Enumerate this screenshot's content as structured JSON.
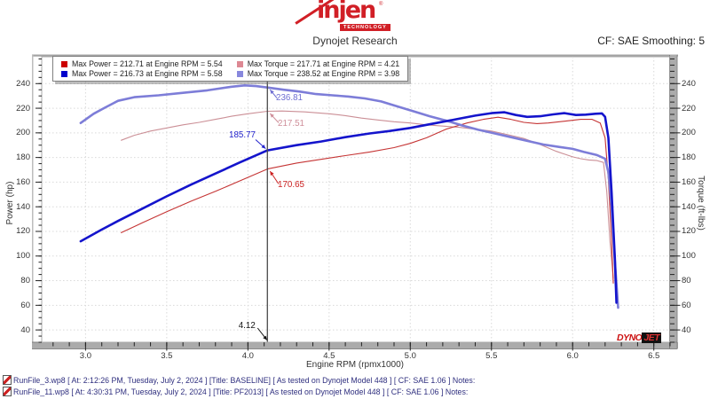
{
  "header": {
    "logo_brand": "injen",
    "logo_reg": "®",
    "logo_sub": "TECHNOLOGY",
    "title": "Dynojet Research",
    "smoothing": "CF: SAE Smoothing: 5"
  },
  "legend": {
    "items": [
      {
        "label": "Max Power = 212.71 at Engine RPM = 5.54",
        "marker_color": "#cc0000"
      },
      {
        "label": "Max Torque = 217.71 at Engine RPM = 4.21",
        "marker_color": "#dd8893"
      },
      {
        "label": "Max Power = 216.73 at Engine RPM = 5.58",
        "marker_color": "#0000cc"
      },
      {
        "label": "Max Torque = 238.52 at Engine RPM = 3.98",
        "marker_color": "#8888dd"
      }
    ]
  },
  "chart_data": {
    "type": "line",
    "x_axis": {
      "label": "Engine RPM (rpmx1000)",
      "range": [
        2.73,
        6.6
      ],
      "ticks": [
        3.0,
        3.5,
        4.0,
        4.5,
        5.0,
        5.5,
        6.0,
        6.5
      ],
      "minor_step": 0.1
    },
    "y_left": {
      "label": "Power (hp)",
      "range": [
        30,
        261.8
      ],
      "ticks": [
        40,
        60,
        80,
        100,
        120,
        140,
        160,
        180,
        200,
        220,
        240
      ],
      "minor_step": 5
    },
    "y_right": {
      "label": "Torque (ft-lbs)",
      "range": [
        30,
        261.8
      ],
      "ticks": [
        40,
        60,
        80,
        100,
        120,
        140,
        160,
        180,
        200,
        220,
        240
      ],
      "minor_step": 5
    },
    "grid": "dotted",
    "colors": {
      "grid": "#d9d9d9",
      "cursor": "#4a4a4a",
      "tick": "#222222"
    },
    "series": [
      {
        "name": "baseline-torque",
        "run": "BASELINE",
        "color": "#cb8f96",
        "width": 1.1,
        "points": [
          [
            3.22,
            194
          ],
          [
            3.3,
            198
          ],
          [
            3.4,
            201.5
          ],
          [
            3.5,
            204
          ],
          [
            3.6,
            206.5
          ],
          [
            3.7,
            208.5
          ],
          [
            3.8,
            211
          ],
          [
            3.9,
            213.5
          ],
          [
            4.0,
            215.5
          ],
          [
            4.12,
            217.51
          ],
          [
            4.21,
            217.71
          ],
          [
            4.35,
            217
          ],
          [
            4.5,
            215.5
          ],
          [
            4.6,
            214
          ],
          [
            4.7,
            212
          ],
          [
            4.8,
            210.5
          ],
          [
            4.9,
            209
          ],
          [
            5.0,
            208
          ],
          [
            5.1,
            206.5
          ],
          [
            5.2,
            205.5
          ],
          [
            5.3,
            204.5
          ],
          [
            5.4,
            203
          ],
          [
            5.5,
            201.5
          ],
          [
            5.6,
            198.5
          ],
          [
            5.7,
            195.5
          ],
          [
            5.8,
            190.5
          ],
          [
            5.9,
            185
          ],
          [
            6.0,
            180.5
          ],
          [
            6.05,
            179
          ],
          [
            6.1,
            178
          ],
          [
            6.15,
            177.5
          ],
          [
            6.19,
            176
          ],
          [
            6.21,
            152
          ],
          [
            6.23,
            112
          ],
          [
            6.25,
            82
          ]
        ]
      },
      {
        "name": "baseline-power",
        "run": "BASELINE",
        "color": "#c53434",
        "width": 1.1,
        "points": [
          [
            3.22,
            119
          ],
          [
            3.35,
            127
          ],
          [
            3.5,
            136
          ],
          [
            3.65,
            144.5
          ],
          [
            3.8,
            152.5
          ],
          [
            3.95,
            161
          ],
          [
            4.12,
            170.65
          ],
          [
            4.3,
            175.5
          ],
          [
            4.45,
            178.5
          ],
          [
            4.6,
            181.5
          ],
          [
            4.75,
            184.5
          ],
          [
            4.9,
            188
          ],
          [
            5.0,
            191.5
          ],
          [
            5.1,
            196
          ],
          [
            5.22,
            203
          ],
          [
            5.35,
            208
          ],
          [
            5.45,
            211
          ],
          [
            5.54,
            212.71
          ],
          [
            5.62,
            211
          ],
          [
            5.7,
            208.5
          ],
          [
            5.78,
            207.5
          ],
          [
            5.85,
            208
          ],
          [
            5.95,
            209.5
          ],
          [
            6.05,
            211
          ],
          [
            6.12,
            211
          ],
          [
            6.17,
            208
          ],
          [
            6.2,
            196
          ],
          [
            6.22,
            162
          ],
          [
            6.24,
            112
          ],
          [
            6.25,
            78
          ]
        ]
      },
      {
        "name": "pf2013-torque",
        "run": "PF2013",
        "color": "#7d7dd8",
        "width": 2.6,
        "points": [
          [
            2.97,
            208
          ],
          [
            3.05,
            215.5
          ],
          [
            3.12,
            220.5
          ],
          [
            3.2,
            226
          ],
          [
            3.3,
            229
          ],
          [
            3.45,
            230.5
          ],
          [
            3.6,
            232.5
          ],
          [
            3.75,
            234.5
          ],
          [
            3.9,
            237.5
          ],
          [
            3.98,
            238.52
          ],
          [
            4.05,
            238
          ],
          [
            4.12,
            236.81
          ],
          [
            4.22,
            235
          ],
          [
            4.32,
            233.5
          ],
          [
            4.42,
            231.5
          ],
          [
            4.52,
            230.5
          ],
          [
            4.62,
            229.5
          ],
          [
            4.72,
            228
          ],
          [
            4.82,
            225.5
          ],
          [
            4.92,
            221.5
          ],
          [
            5.02,
            217.5
          ],
          [
            5.12,
            213.5
          ],
          [
            5.22,
            210
          ],
          [
            5.32,
            206
          ],
          [
            5.42,
            202.5
          ],
          [
            5.52,
            199.5
          ],
          [
            5.62,
            196.5
          ],
          [
            5.72,
            193.5
          ],
          [
            5.82,
            190.5
          ],
          [
            5.92,
            188.5
          ],
          [
            6.0,
            187
          ],
          [
            6.07,
            184.5
          ],
          [
            6.15,
            182
          ],
          [
            6.2,
            179
          ],
          [
            6.22,
            168
          ],
          [
            6.24,
            140
          ],
          [
            6.26,
            96
          ],
          [
            6.28,
            58
          ]
        ]
      },
      {
        "name": "pf2013-power",
        "run": "PF2013",
        "color": "#1414cc",
        "width": 2.6,
        "points": [
          [
            2.97,
            112
          ],
          [
            3.1,
            121.5
          ],
          [
            3.2,
            128.5
          ],
          [
            3.35,
            138.5
          ],
          [
            3.5,
            148.5
          ],
          [
            3.65,
            158
          ],
          [
            3.8,
            167
          ],
          [
            3.95,
            176
          ],
          [
            4.12,
            185.77
          ],
          [
            4.3,
            190
          ],
          [
            4.45,
            193
          ],
          [
            4.6,
            196.5
          ],
          [
            4.75,
            199.5
          ],
          [
            4.87,
            201.5
          ],
          [
            5.0,
            204
          ],
          [
            5.1,
            206.5
          ],
          [
            5.22,
            209.5
          ],
          [
            5.3,
            211.5
          ],
          [
            5.4,
            214
          ],
          [
            5.5,
            216
          ],
          [
            5.58,
            216.73
          ],
          [
            5.65,
            214.5
          ],
          [
            5.72,
            213
          ],
          [
            5.8,
            213.5
          ],
          [
            5.88,
            215
          ],
          [
            5.95,
            216
          ],
          [
            6.02,
            214.5
          ],
          [
            6.08,
            214.8
          ],
          [
            6.14,
            215.5
          ],
          [
            6.18,
            215.8
          ],
          [
            6.2,
            213
          ],
          [
            6.22,
            196
          ],
          [
            6.24,
            152
          ],
          [
            6.26,
            98
          ],
          [
            6.27,
            62
          ]
        ]
      }
    ],
    "cursor": {
      "rpm": 4.12,
      "label": "4.12",
      "readouts": [
        {
          "series": "pf2013-torque",
          "value": "236.81",
          "color": "#6e6ed2"
        },
        {
          "series": "baseline-torque",
          "value": "217.51",
          "color": "#cf8f9a"
        },
        {
          "series": "pf2013-power",
          "value": "185.77",
          "color": "#2222cc"
        },
        {
          "series": "baseline-power",
          "value": "170.65",
          "color": "#cc2222"
        }
      ]
    }
  },
  "watermark": {
    "part1": "DYNO",
    "part2": "JET"
  },
  "footer": {
    "runs": [
      {
        "text": "RunFile_3.wp8 [ At: 2:12:26 PM, Tuesday, July 2, 2024 ] [Title: BASELINE]  [ As tested on Dynojet Model 448 ] [ CF: SAE 1.06 ] Notes:"
      },
      {
        "text": "RunFile_11.wp8 [ At: 4:30:31 PM, Tuesday, July 2, 2024 ] [Title: PF2013]  [ As tested on Dynojet Model 448 ] [ CF: SAE 1.06 ] Notes:"
      }
    ]
  }
}
